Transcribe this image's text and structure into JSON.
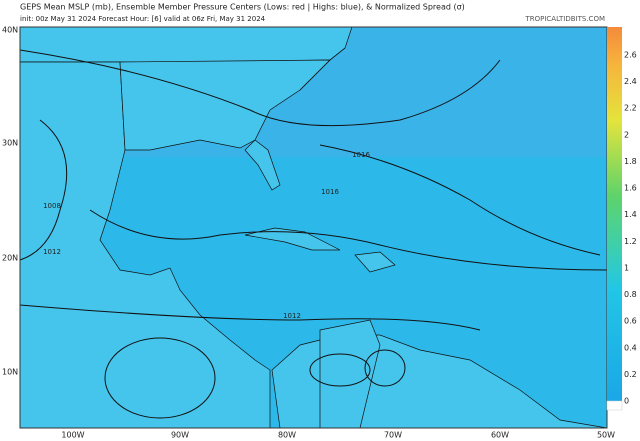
{
  "header": {
    "title": "GEPS Mean MSLP (mb), Ensemble Member Pressure Centers (Lows: red | Highs: blue), & Normalized Spread (σ)",
    "subtitle": "init: 00z May 31 2024   Forecast Hour: [6]   valid at 06z Fri, May 31 2024",
    "credit": "TROPICALTIDBITS.COM"
  },
  "map": {
    "lat_labels": [
      "40N",
      "30N",
      "20N",
      "10N"
    ],
    "lon_labels": [
      "100W",
      "90W",
      "80W",
      "70W",
      "60W",
      "50W"
    ],
    "contour_labels": [
      "1016",
      "1016",
      "1008",
      "1012",
      "1012"
    ]
  },
  "colorbar": {
    "ticks": [
      0,
      0.2,
      0.4,
      0.6,
      0.8,
      1,
      1.2,
      1.4,
      1.6,
      1.8,
      2,
      2.2,
      2.4,
      2.6
    ]
  }
}
